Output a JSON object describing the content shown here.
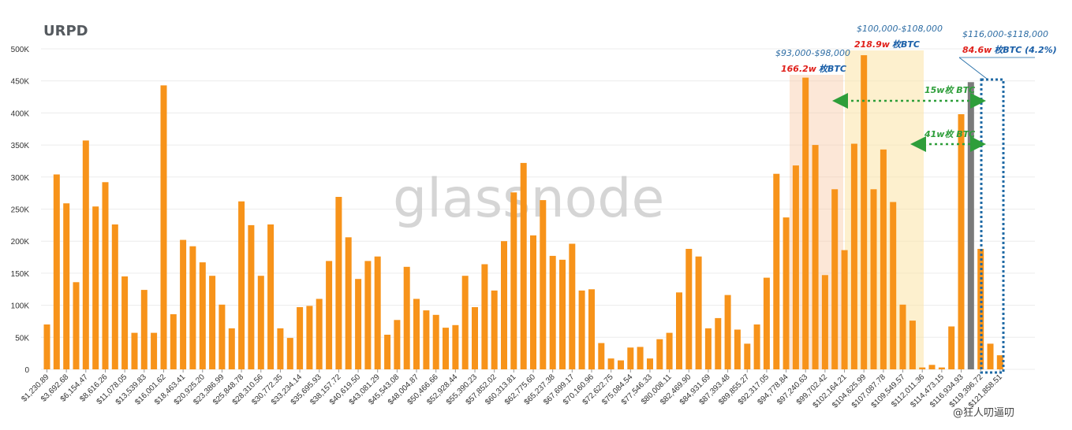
{
  "chart_data": {
    "type": "bar",
    "title": "URPD",
    "watermark": "glassnode",
    "xlabel": "",
    "ylabel": "",
    "ylim": [
      0,
      500000
    ],
    "y_ticks": [
      "0",
      "50K",
      "100K",
      "150K",
      "200K",
      "250K",
      "300K",
      "350K",
      "400K",
      "450K",
      "500K"
    ],
    "grid": true,
    "bar_color": "#f7931a",
    "highlight_color": "#7a7a7a",
    "x_tick_labels": [
      "$1,230.89",
      "$3,692.68",
      "$6,154.47",
      "$8,616.26",
      "$11,078.05",
      "$13,539.83",
      "$16,001.62",
      "$18,463.41",
      "$20,925.20",
      "$23,386.99",
      "$25,848.78",
      "$28,310.56",
      "$30,772.35",
      "$33,234.14",
      "$35,695.93",
      "$38,157.72",
      "$40,619.50",
      "$43,081.29",
      "$45,543.08",
      "$48,004.87",
      "$50,466.66",
      "$52,928.44",
      "$55,390.23",
      "$57,852.02",
      "$60,313.81",
      "$62,775.60",
      "$65,237.38",
      "$67,699.17",
      "$70,160.96",
      "$72,622.75",
      "$75,084.54",
      "$77,546.33",
      "$80,008.11",
      "$82,469.90",
      "$84,931.69",
      "$87,393.48",
      "$89,855.27",
      "$92,317.05",
      "$94,778.84",
      "$97,240.63",
      "$99,702.42",
      "$102,164.21",
      "$104,625.99",
      "$107,087.78",
      "$109,549.57",
      "$112,011.36",
      "$114,473.15",
      "$116,934.93",
      "$119,396.72",
      "$121,858.51"
    ],
    "values": [
      70000,
      304000,
      259000,
      136000,
      357000,
      254000,
      292000,
      226000,
      145000,
      57000,
      124000,
      57000,
      443000,
      86000,
      202000,
      192000,
      167000,
      146000,
      101000,
      64000,
      262000,
      225000,
      146000,
      226000,
      64000,
      49000,
      97000,
      99000,
      110000,
      169000,
      269000,
      206000,
      141000,
      169000,
      176000,
      54000,
      77000,
      160000,
      110000,
      92000,
      85000,
      65000,
      69000,
      146000,
      97000,
      164000,
      123000,
      200000,
      276000,
      322000,
      209000,
      264000,
      177000,
      171000,
      196000,
      123000,
      125000,
      41000,
      17000,
      14000,
      34000,
      35000,
      17000,
      47000,
      57000,
      120000,
      188000,
      176000,
      64000,
      80000,
      116000,
      62000,
      40000,
      70000,
      143000,
      305000,
      237000,
      318000,
      455000,
      350000,
      147000,
      281000,
      186000,
      352000,
      490000,
      281000,
      343000,
      261000,
      101000,
      76000,
      3000,
      7000,
      3000,
      67000,
      398000,
      448000,
      188000,
      40000,
      22000
    ],
    "highlight_index": 95
  },
  "annotations": {
    "zone1": {
      "range": "$93,000-$98,000",
      "amount": "166.2w",
      "unit": "枚BTC",
      "color": "#f9c9a6"
    },
    "zone2": {
      "range": "$100,000-$108,000",
      "amount": "218.9w",
      "unit": "枚BTC",
      "color": "#fbe3a6"
    },
    "zone3": {
      "range": "$116,000-$118,000",
      "amount": "84.6w",
      "unit": "枚BTC  (4.2%)"
    },
    "arrow1": "15w枚 BTC",
    "arrow2": "41w枚 BTC",
    "arrow_color": "#2e9e3a",
    "box_color": "#1f6aa5"
  },
  "corner_watermark": "@狂人叨逼叨"
}
